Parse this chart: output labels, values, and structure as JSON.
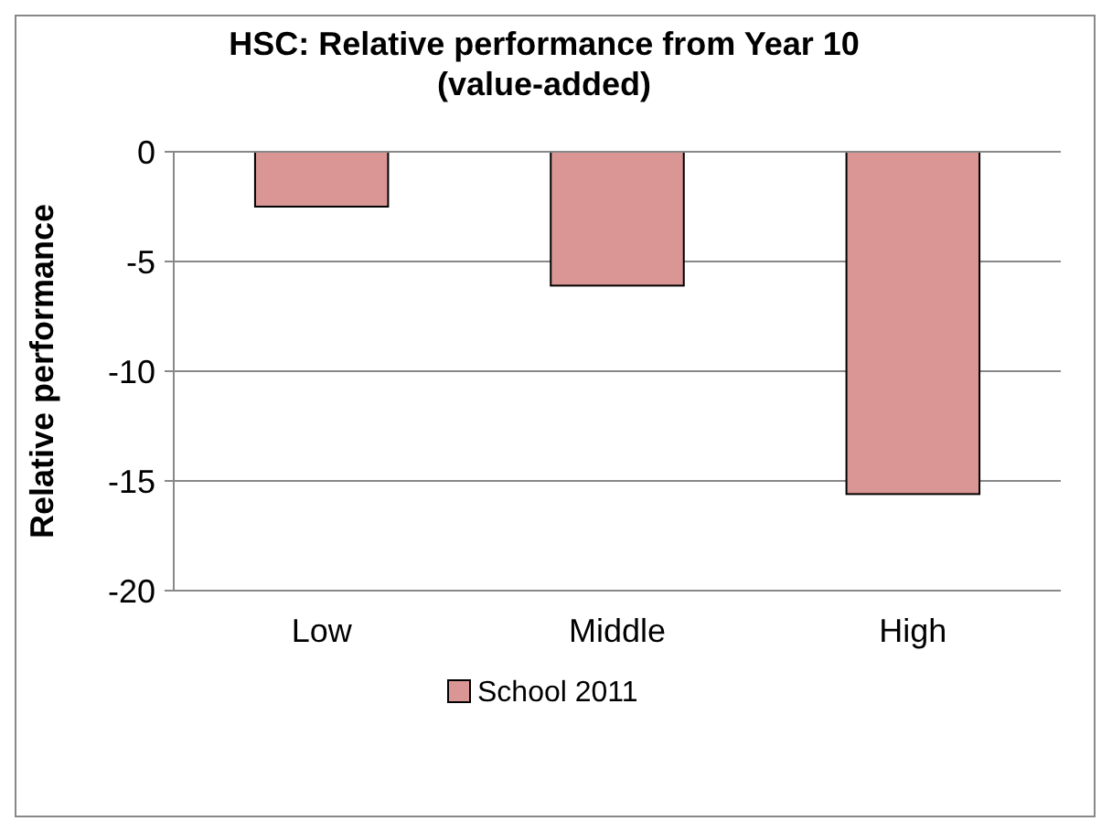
{
  "chart_data": {
    "type": "bar",
    "title": "HSC: Relative performance from Year 10 (value-added)",
    "ylabel": "Relative performance",
    "categories": [
      "Low",
      "Middle",
      "High"
    ],
    "series": [
      {
        "name": "School 2011",
        "color": "#d99694",
        "values": [
          -2.5,
          -6.1,
          -15.6
        ]
      }
    ],
    "ylim": [
      -20,
      0
    ],
    "yticks": [
      -20,
      -15,
      -10,
      -5,
      0
    ],
    "grid": "y",
    "legend": "bottom"
  }
}
